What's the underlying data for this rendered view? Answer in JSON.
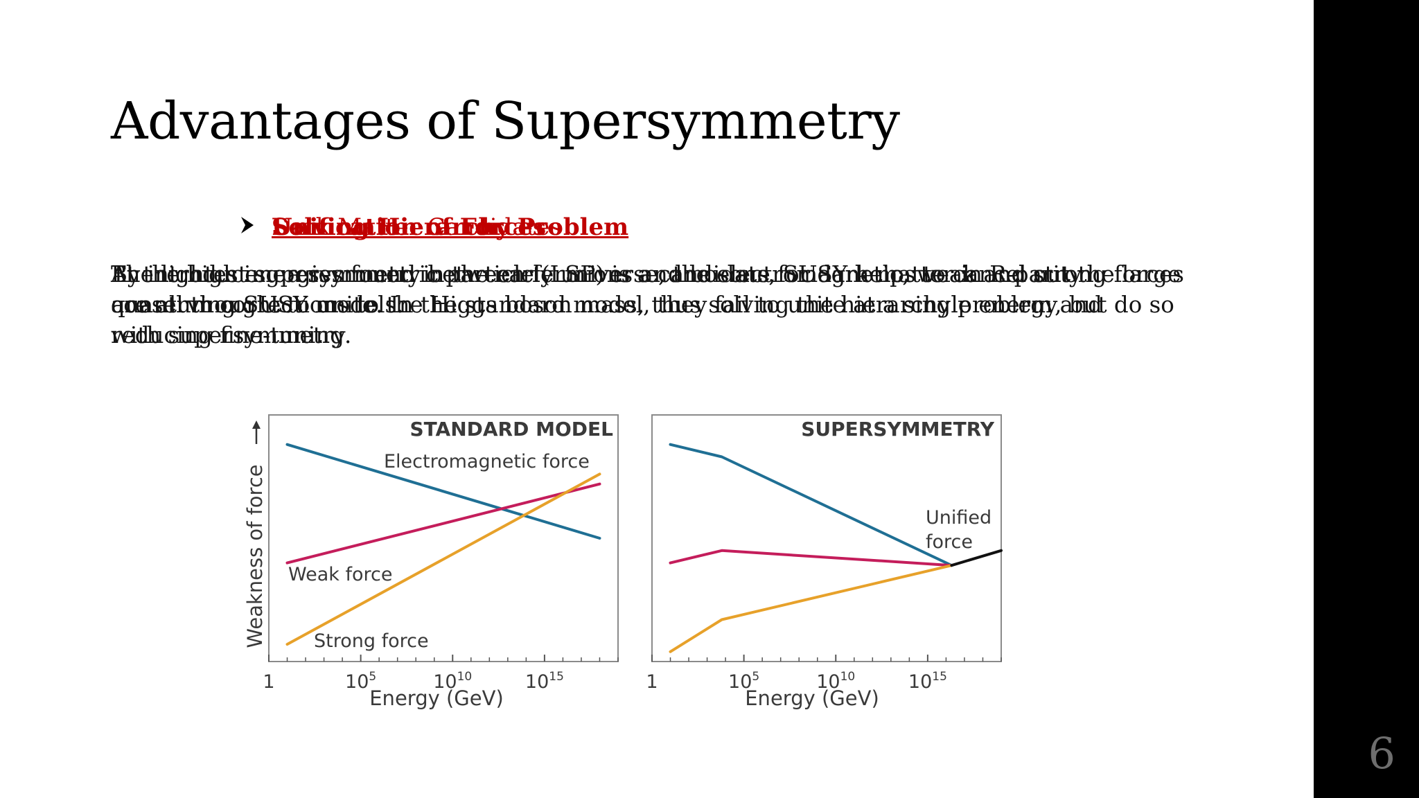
{
  "slide": {
    "title": "Advantages of Supersymmetry",
    "page_number": "6",
    "headings": [
      "Solving Hierarchy Problem",
      "Dark Matter Candidates",
      "Unification of Forces"
    ],
    "bodies": [
      "By introducing a symmetry between fermions and bosons, SUSY helps to cancel out the large quantum corrections to the Higgs boson mass, thus solving the hierarchy problem and reducing fine-tuning.",
      "The lightest supersymmetric particle (LSP) is a candidate for dark matter in R-parity conserving SUSY models.",
      "At the high energies found in the early universe, the electromagnetic, weak and strong forces are all thought to unite. In the standard model, they fail to unite at a single energy, but do so with supersymmetry"
    ]
  },
  "colors": {
    "heading": "#c00000",
    "electromagnetic": "#1f6f94",
    "weak": "#c41d5b",
    "strong": "#e7a12a",
    "unified": "#111111",
    "sidebar": "#000000"
  },
  "chart_data": [
    {
      "type": "line",
      "title": "STANDARD MODEL",
      "xlabel": "Energy (GeV)",
      "ylabel": "Weakness of force",
      "xscale": "log",
      "xticks": [
        "1",
        "10^5",
        "10^10",
        "10^15"
      ],
      "xlim": [
        0,
        19
      ],
      "ylim": [
        0,
        100
      ],
      "series": [
        {
          "name": "Electromagnetic force",
          "x": [
            1,
            18
          ],
          "y": [
            88,
            50
          ]
        },
        {
          "name": "Weak force",
          "x": [
            1,
            18
          ],
          "y": [
            40,
            72
          ]
        },
        {
          "name": "Strong force",
          "x": [
            1,
            18
          ],
          "y": [
            7,
            76
          ]
        }
      ]
    },
    {
      "type": "line",
      "title": "SUPERSYMMETRY",
      "xlabel": "Energy (GeV)",
      "xscale": "log",
      "xticks": [
        "1",
        "10^5",
        "10^10",
        "10^15"
      ],
      "xlim": [
        0,
        19
      ],
      "ylim": [
        0,
        100
      ],
      "annotation": "Unified force",
      "series": [
        {
          "x": [
            1,
            3.8,
            16.3
          ],
          "y": [
            88,
            83,
            39
          ]
        },
        {
          "x": [
            1,
            3.8,
            16.3
          ],
          "y": [
            40,
            45,
            39
          ]
        },
        {
          "x": [
            1,
            3.8,
            16.3
          ],
          "y": [
            4,
            17,
            39
          ]
        },
        {
          "x": [
            16.3,
            19
          ],
          "y": [
            39,
            45
          ]
        }
      ]
    }
  ]
}
